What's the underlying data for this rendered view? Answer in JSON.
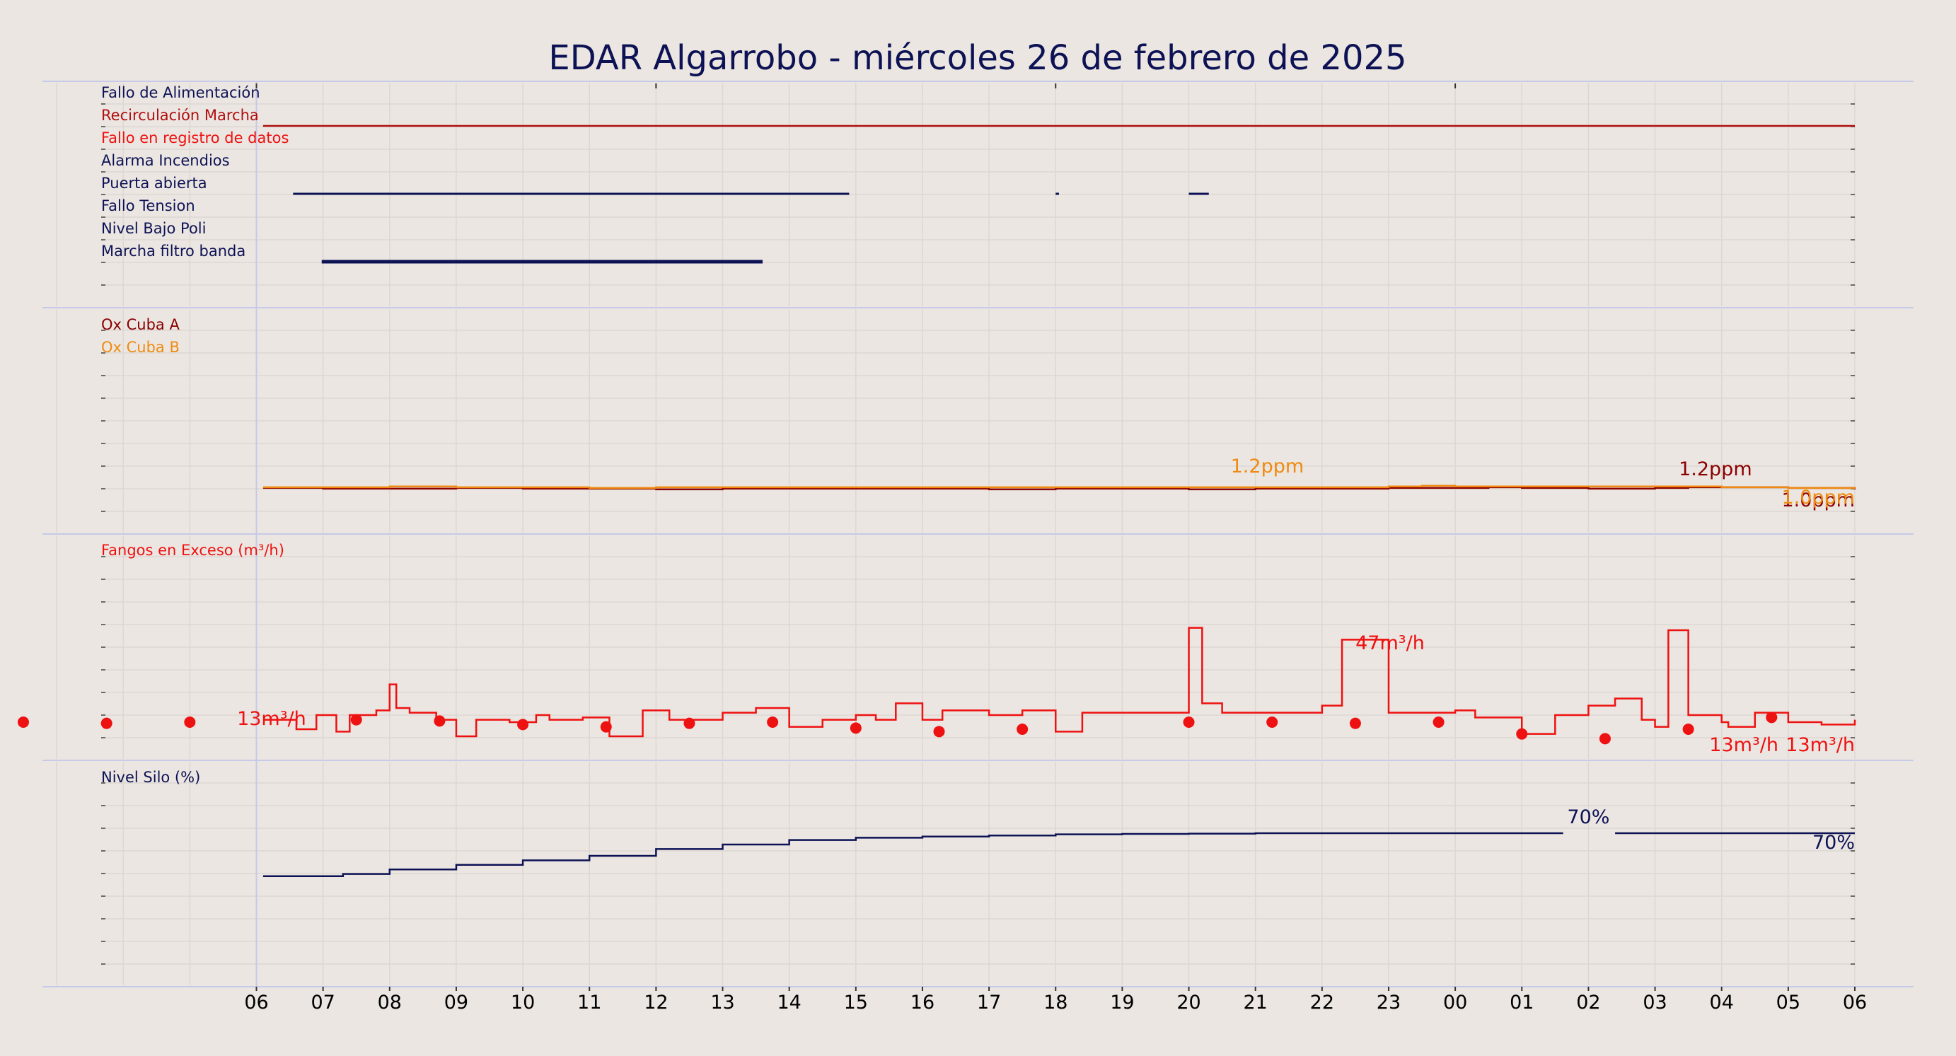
{
  "title": "EDAR Algarrobo   -   miércoles 26 de febrero de 2025",
  "colors": {
    "navy": "#0d1255",
    "dark_red": "#8b0000",
    "red": "#ee1111",
    "orange": "#f08a10",
    "background": "#ebe6e1"
  },
  "chart_data": [
    {
      "type": "line",
      "panel": "events",
      "step": true,
      "x_unit": "hours since 06:00 on 26 Feb 2025",
      "xlim": [
        -6,
        24
      ],
      "rows": [
        {
          "name": "Fallo de Alimentación",
          "color": "#0d1255",
          "segments": []
        },
        {
          "name": "Recirculación Marcha",
          "color": "#b01010",
          "segments": [
            [
              0.1,
              24
            ]
          ]
        },
        {
          "name": "Fallo en registro de datos",
          "color": "#ee1111",
          "segments": []
        },
        {
          "name": "Alarma Incendios",
          "color": "#0d1255",
          "segments": []
        },
        {
          "name": "Puerta abierta",
          "color": "#0d1255",
          "segments": [
            [
              0.55,
              8.9
            ],
            [
              12.0,
              12.05
            ],
            [
              14.0,
              14.3
            ]
          ]
        },
        {
          "name": "Fallo Tension",
          "color": "#0d1255",
          "segments": []
        },
        {
          "name": "Nivel Bajo Poli",
          "color": "#0d1255",
          "segments": []
        },
        {
          "name": "Marcha filtro banda",
          "color": "#0d1255",
          "segments": [
            [
              0.98,
              7.6
            ]
          ]
        }
      ]
    },
    {
      "type": "line",
      "panel": "oxygen",
      "step": true,
      "ylim": [
        0,
        10
      ],
      "series": [
        {
          "name": "Ox Cuba A",
          "color": "#8b0000",
          "x": [
            0.1,
            1.0,
            2.0,
            3.0,
            4.0,
            5.0,
            6.0,
            7.0,
            8.0,
            9.0,
            10.0,
            11.0,
            12.0,
            13.0,
            14.0,
            15.0,
            16.0,
            17.0,
            18.0,
            18.5,
            19.0,
            20.0,
            21.0,
            21.5,
            22.0,
            23.0,
            24.0
          ],
          "values": [
            1.1,
            1.05,
            1.05,
            1.1,
            1.05,
            1.05,
            1.0,
            1.05,
            1.05,
            1.05,
            1.05,
            1.0,
            1.05,
            1.05,
            1.0,
            1.05,
            1.05,
            1.1,
            1.1,
            1.15,
            1.1,
            1.05,
            1.1,
            1.15,
            1.15,
            1.1,
            1.0
          ],
          "annotations": [
            {
              "text": "1.2ppm",
              "x": 21.5,
              "y": 1.2
            },
            {
              "text": "1.0ppm",
              "x": 24.0,
              "y": 1.0
            }
          ]
        },
        {
          "name": "Ox Cuba B",
          "color": "#f08a10",
          "x": [
            0.1,
            1.0,
            2.0,
            3.0,
            4.0,
            5.0,
            6.0,
            7.0,
            8.0,
            9.0,
            10.0,
            11.0,
            12.0,
            13.0,
            14.0,
            15.0,
            16.0,
            17.0,
            17.5,
            18.0,
            19.0,
            20.0,
            21.0,
            22.0,
            23.0,
            24.0
          ],
          "values": [
            1.15,
            1.15,
            1.2,
            1.15,
            1.15,
            1.1,
            1.15,
            1.15,
            1.15,
            1.15,
            1.15,
            1.15,
            1.15,
            1.15,
            1.15,
            1.15,
            1.15,
            1.2,
            1.25,
            1.2,
            1.2,
            1.2,
            1.2,
            1.15,
            1.1,
            1.05
          ],
          "annotations": [
            {
              "text": "1.2ppm",
              "x": 17.5,
              "y": 1.2
            },
            {
              "text": "1.0ppm",
              "x": 24.0,
              "y": 1.0
            }
          ]
        }
      ]
    },
    {
      "type": "line",
      "panel": "sludge",
      "step": true,
      "ylim": [
        0,
        90
      ],
      "series": [
        {
          "name": "Fangos en Exceso (m³/h)",
          "color": "#ee1111",
          "x": [
            0.1,
            0.6,
            0.9,
            1.2,
            1.4,
            1.8,
            2.0,
            2.1,
            2.3,
            2.7,
            3.0,
            3.3,
            3.8,
            4.2,
            4.4,
            4.9,
            5.3,
            5.8,
            6.2,
            6.4,
            7.0,
            7.5,
            8.0,
            8.5,
            9.0,
            9.3,
            9.6,
            10.0,
            10.3,
            11.0,
            11.5,
            12.0,
            12.4,
            13.0,
            13.9,
            14.0,
            14.2,
            14.5,
            15.0,
            16.0,
            16.3,
            17.0,
            18.0,
            18.3,
            19.0,
            19.5,
            20.0,
            20.4,
            20.8,
            21.0,
            21.2,
            21.5,
            22.0,
            22.1,
            22.5,
            23.0,
            23.5,
            24.0
          ],
          "values": [
            13,
            9,
            15,
            8,
            15,
            17,
            28,
            18,
            16,
            13,
            6,
            13,
            12,
            15,
            13,
            14,
            6,
            17,
            13,
            13,
            16,
            18,
            10,
            13,
            15,
            13,
            20,
            13,
            17,
            15,
            17,
            8,
            16,
            16,
            16,
            52,
            20,
            16,
            16,
            19,
            47,
            16,
            17,
            14,
            7,
            15,
            19,
            22,
            13,
            10,
            51,
            15,
            12,
            10,
            16,
            12,
            11,
            13
          ],
          "annotations": [
            {
              "text": "13m³/h",
              "x": 0.1,
              "y": 13
            },
            {
              "text": "47m³/h",
              "x": 17.0,
              "y": 47
            },
            {
              "text": "13m³/h",
              "x": 24.0,
              "y": 13
            }
          ]
        }
      ],
      "points": {
        "color": "#ee1111",
        "x": [
          -4.75,
          -3.5,
          -2.25,
          -1.0,
          1.5,
          2.75,
          4.0,
          5.25,
          6.5,
          7.75,
          9.0,
          10.25,
          11.5,
          14.0,
          15.25,
          16.5,
          17.75,
          19.0,
          20.25,
          21.5,
          22.75
        ],
        "values": [
          11.5,
          12,
          11.5,
          12,
          13,
          12.5,
          11,
          10,
          11.5,
          12,
          9.5,
          8,
          9,
          12,
          12,
          11.5,
          12,
          7,
          5,
          9,
          14
        ]
      }
    },
    {
      "type": "line",
      "panel": "silo",
      "step": true,
      "ylim": [
        0,
        100
      ],
      "series": [
        {
          "name": "Nivel Silo (%)",
          "color": "#0d1255",
          "x": [
            0.1,
            1.3,
            2.0,
            3.0,
            4.0,
            5.0,
            6.0,
            7.0,
            8.0,
            9.0,
            10.0,
            11.0,
            12.0,
            13.0,
            14.0,
            15.0,
            16.0,
            17.0,
            18.0,
            19.0,
            19.62,
            20.4,
            24.0
          ],
          "values": [
            51,
            52,
            54,
            56,
            58,
            60,
            63,
            65,
            67,
            68,
            68.5,
            69,
            69.5,
            69.7,
            69.8,
            70,
            70,
            70,
            70,
            70,
            null,
            70,
            70
          ],
          "annotations": [
            {
              "text": "70%",
              "x": 20.0,
              "y": 70
            },
            {
              "text": "70%",
              "x": 24.0,
              "y": 70
            }
          ]
        }
      ]
    }
  ],
  "x_axis": {
    "tick_labels": [
      "06",
      "07",
      "08",
      "09",
      "10",
      "11",
      "12",
      "13",
      "14",
      "15",
      "16",
      "17",
      "18",
      "19",
      "20",
      "21",
      "22",
      "23",
      "00",
      "01",
      "02",
      "03",
      "04",
      "05",
      "06"
    ]
  }
}
